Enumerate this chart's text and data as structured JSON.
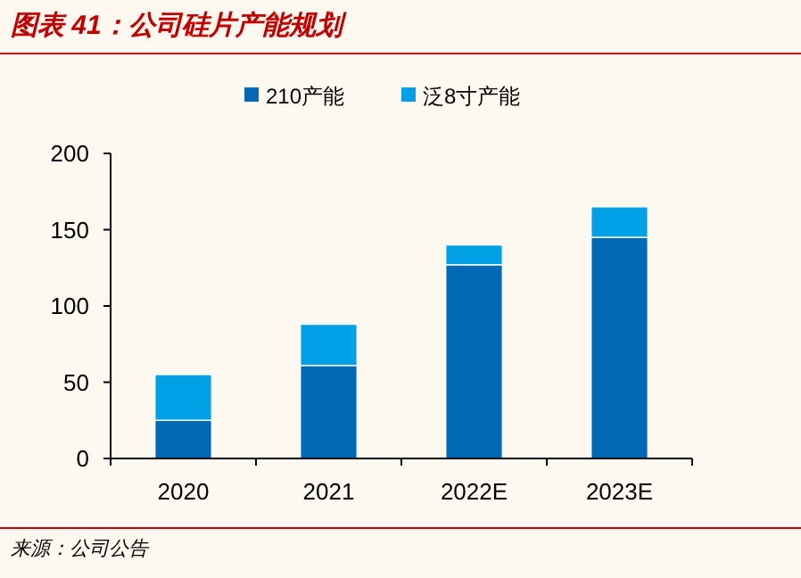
{
  "chart_data": {
    "type": "bar",
    "title": "图表 41：公司硅片产能规划",
    "stacked": true,
    "categories": [
      "2020",
      "2021",
      "2022E",
      "2023E"
    ],
    "series": [
      {
        "name": "210产能",
        "color": "#0068b4",
        "values": [
          25,
          61,
          127,
          145
        ]
      },
      {
        "name": "泛8寸产能",
        "color": "#00a0e6",
        "values": [
          30,
          27,
          13,
          20
        ]
      }
    ],
    "ylim": [
      0,
      200
    ],
    "yticks": [
      0,
      50,
      100,
      150,
      200
    ],
    "legend": "top",
    "grid": false,
    "annotations": [
      "来源：公司公告"
    ]
  }
}
